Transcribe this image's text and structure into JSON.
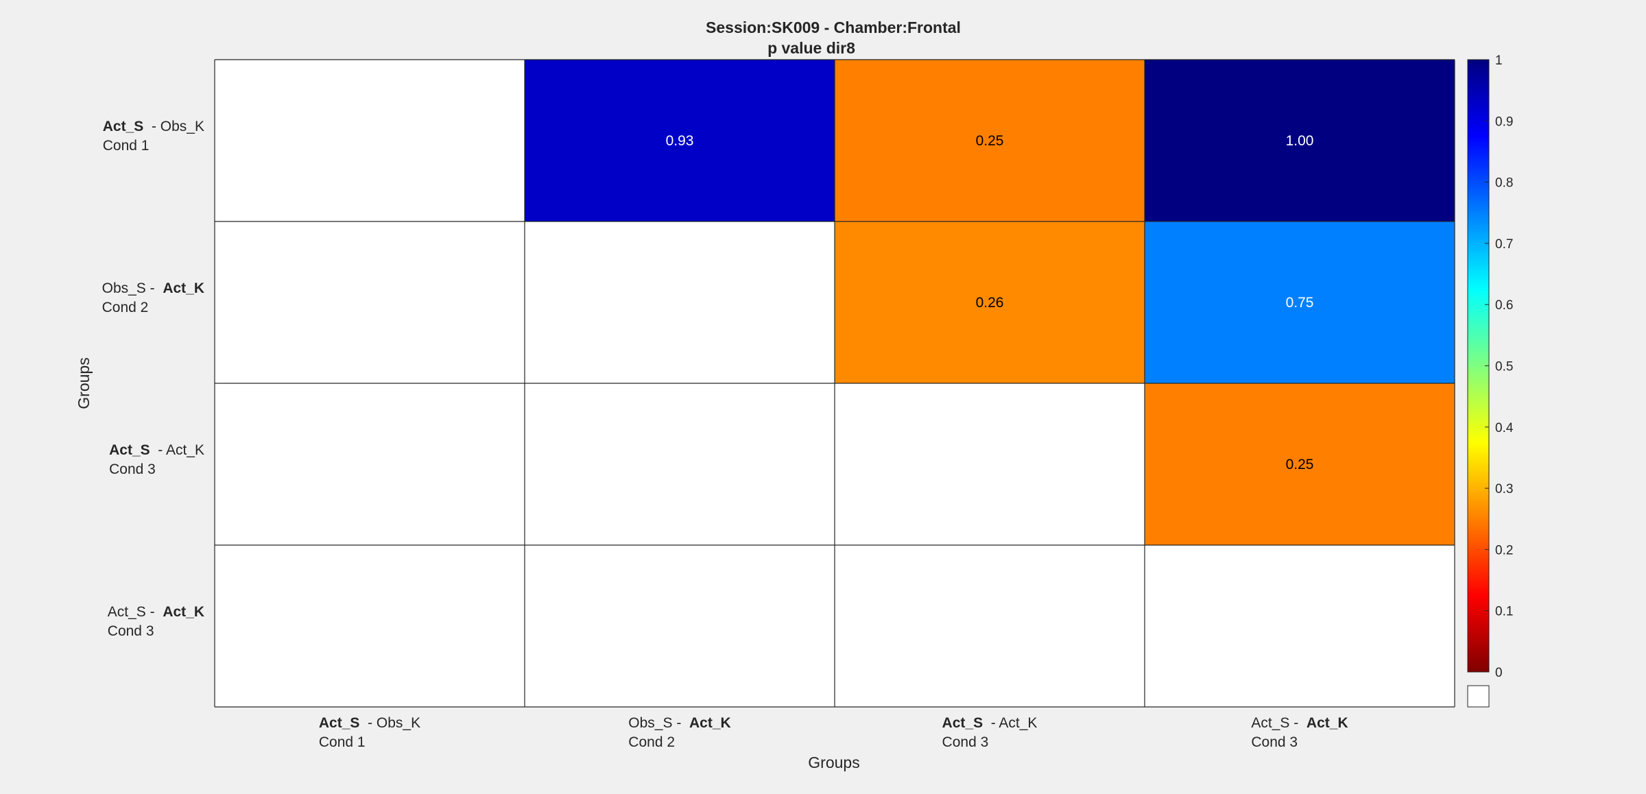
{
  "chart_data": {
    "type": "heatmap",
    "title": [
      "Session:SK009 - Chamber:Frontal",
      "p value dir8"
    ],
    "xlabel": "Groups",
    "ylabel": "Groups",
    "groups": [
      {
        "line1": [
          {
            "t": "Act_S",
            "b": true
          },
          {
            "t": "  - Obs_K",
            "b": false
          }
        ],
        "line2": "Cond 1"
      },
      {
        "line1": [
          {
            "t": "Obs_S -  ",
            "b": false
          },
          {
            "t": "Act_K",
            "b": true
          }
        ],
        "line2": "Cond 2"
      },
      {
        "line1": [
          {
            "t": "Act_S",
            "b": true
          },
          {
            "t": "  - Act_K",
            "b": false
          }
        ],
        "line2": "Cond 3"
      },
      {
        "line1": [
          {
            "t": "Act_S -  ",
            "b": false
          },
          {
            "t": "Act_K",
            "b": true
          }
        ],
        "line2": "Cond 3"
      }
    ],
    "values": [
      [
        null,
        0.93,
        0.25,
        1.0
      ],
      [
        null,
        null,
        0.26,
        0.75
      ],
      [
        null,
        null,
        null,
        0.25
      ],
      [
        null,
        null,
        null,
        null
      ]
    ],
    "colormap": "jet",
    "clim": [
      0,
      1
    ],
    "colorbar_ticks": [
      0,
      0.1,
      0.2,
      0.3,
      0.4,
      0.5,
      0.6,
      0.7,
      0.8,
      0.9,
      1
    ],
    "nan_color": "#ffffff",
    "grid": true
  }
}
